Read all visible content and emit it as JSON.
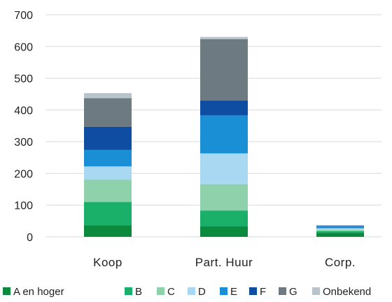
{
  "chart_data": {
    "type": "bar",
    "stacked": true,
    "categories": [
      "Koop",
      "Part. Huur",
      "Corp."
    ],
    "series": [
      {
        "name": "A en hoger",
        "color": "#0b8a3e",
        "values": [
          37,
          33,
          13
        ]
      },
      {
        "name": "B",
        "color": "#1bb06a",
        "values": [
          73,
          50,
          5
        ]
      },
      {
        "name": "C",
        "color": "#8fd1ab",
        "values": [
          70,
          83,
          4
        ]
      },
      {
        "name": "D",
        "color": "#a9d8f2",
        "values": [
          42,
          97,
          5
        ]
      },
      {
        "name": "E",
        "color": "#1a8fd6",
        "values": [
          52,
          120,
          7
        ]
      },
      {
        "name": "F",
        "color": "#0f4da3",
        "values": [
          73,
          47,
          1
        ]
      },
      {
        "name": "G",
        "color": "#6e7a82",
        "values": [
          90,
          193,
          1
        ]
      },
      {
        "name": "Onbekend",
        "color": "#b8c4cc",
        "values": [
          16,
          7,
          1
        ]
      }
    ],
    "ylim": [
      0,
      700
    ],
    "yticks": [
      0,
      100,
      200,
      300,
      400,
      500,
      600,
      700
    ],
    "grid": true,
    "legend": "bottom",
    "xlabel": "",
    "ylabel": ""
  }
}
